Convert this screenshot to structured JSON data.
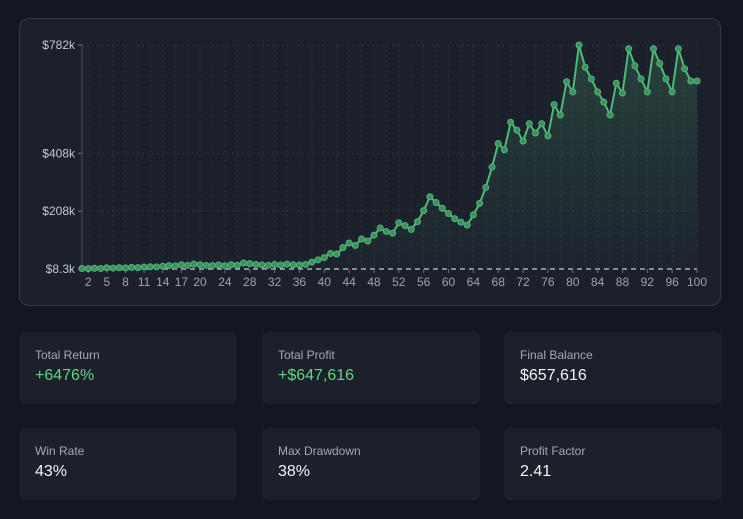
{
  "chart_data": {
    "type": "line",
    "x": [
      1,
      2,
      3,
      4,
      5,
      6,
      7,
      8,
      9,
      10,
      11,
      12,
      13,
      14,
      15,
      16,
      17,
      18,
      19,
      20,
      21,
      22,
      23,
      24,
      25,
      26,
      27,
      28,
      29,
      30,
      31,
      32,
      33,
      34,
      35,
      36,
      37,
      38,
      39,
      40,
      41,
      42,
      43,
      44,
      45,
      46,
      47,
      48,
      49,
      50,
      51,
      52,
      53,
      54,
      55,
      56,
      57,
      58,
      59,
      60,
      61,
      62,
      63,
      64,
      65,
      66,
      67,
      68,
      69,
      70,
      71,
      72,
      73,
      74,
      75,
      76,
      77,
      78,
      79,
      80,
      81,
      82,
      83,
      84,
      85,
      86,
      87,
      88,
      89,
      90,
      91,
      92,
      93,
      94,
      95,
      96,
      97,
      98,
      99,
      100
    ],
    "series": [
      {
        "values": [
          10000,
          9500,
          11000,
          10000,
          12500,
          11500,
          13000,
          12000,
          14000,
          13000,
          15000,
          16000,
          15500,
          18000,
          20000,
          19000,
          23000,
          21000,
          25000,
          23000,
          21000,
          20000,
          22000,
          19500,
          23000,
          21000,
          29000,
          27000,
          24000,
          22000,
          21000,
          24000,
          22000,
          25000,
          23000,
          22000,
          24000,
          32000,
          40000,
          48000,
          62000,
          60000,
          82000,
          98000,
          90000,
          112000,
          105000,
          125000,
          150000,
          138000,
          132000,
          168000,
          158000,
          145000,
          172000,
          210000,
          258000,
          238000,
          218000,
          200000,
          182000,
          170000,
          160000,
          195000,
          235000,
          290000,
          360000,
          442000,
          420000,
          515000,
          488000,
          450000,
          510000,
          478000,
          510000,
          468000,
          576000,
          540000,
          655000,
          620000,
          782000,
          705000,
          665000,
          620000,
          585000,
          540000,
          650000,
          616000,
          769000,
          710000,
          665000,
          620000,
          769000,
          718000,
          665000,
          620000,
          769000,
          700000,
          657616,
          657616
        ]
      }
    ],
    "yticks": [
      8300,
      208000,
      408000,
      782000
    ],
    "ytick_labels": [
      "$8.3k",
      "$208k",
      "$408k",
      "$782k"
    ],
    "xticks": [
      2,
      5,
      8,
      11,
      14,
      17,
      20,
      24,
      28,
      32,
      36,
      40,
      44,
      48,
      52,
      56,
      60,
      64,
      68,
      72,
      76,
      80,
      84,
      88,
      92,
      96,
      100
    ],
    "ylim": [
      8300,
      782000
    ],
    "xlim": [
      1,
      100
    ],
    "grid": true,
    "line_color": "#4fb87a",
    "baseline_dashed": true
  },
  "stats": [
    {
      "label": "Total Return",
      "value": "+6476%",
      "positive": true
    },
    {
      "label": "Total Profit",
      "value": "+$647,616",
      "positive": true
    },
    {
      "label": "Final Balance",
      "value": "$657,616",
      "positive": false
    },
    {
      "label": "Win Rate",
      "value": "43%",
      "positive": false
    },
    {
      "label": "Max Drawdown",
      "value": "38%",
      "positive": false
    },
    {
      "label": "Profit Factor",
      "value": "2.41",
      "positive": false
    }
  ]
}
